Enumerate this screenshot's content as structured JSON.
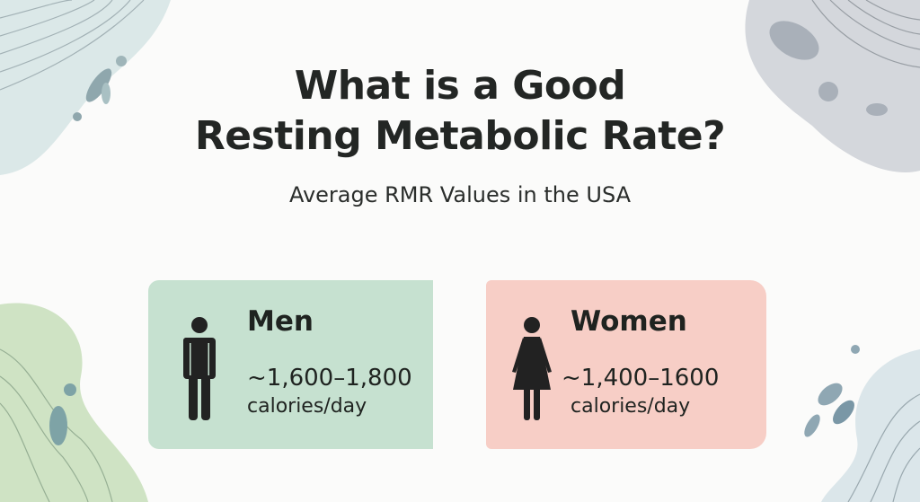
{
  "title_line1": "What is a Good",
  "title_line2": "Resting Metabolic Rate?",
  "subtitle": "Average RMR Values in the USA",
  "cards": [
    {
      "label": "Men",
      "range": "~1,600–1,800",
      "unit": "calories/day",
      "color": "#c6e1d0",
      "icon": "man-icon"
    },
    {
      "label": "Women",
      "range": "~1,400–1600",
      "unit": "calories/day",
      "color": "#f7cec6",
      "icon": "woman-icon"
    }
  ]
}
